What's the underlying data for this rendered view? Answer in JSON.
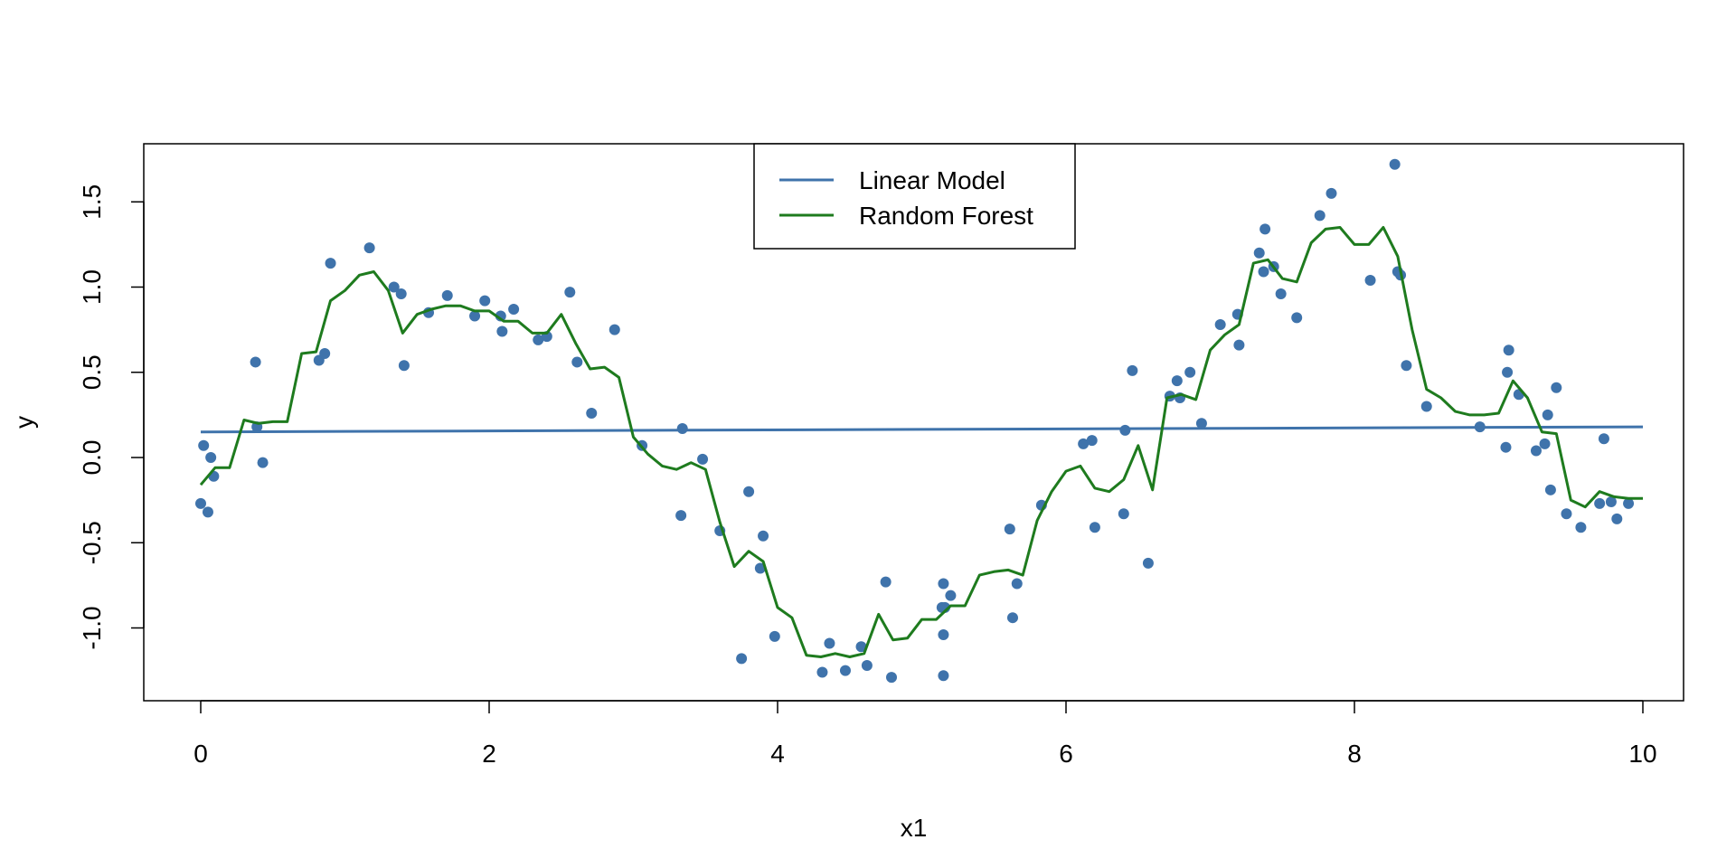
{
  "chart_data": {
    "type": "scatter",
    "title": "",
    "xlabel": "x1",
    "ylabel": "y",
    "xlim": [
      0,
      10
    ],
    "ylim": [
      -1.3,
      1.72
    ],
    "x_ticks": [
      0,
      2,
      4,
      6,
      8,
      10
    ],
    "x_tick_labels": [
      "0",
      "2",
      "4",
      "6",
      "8",
      "10"
    ],
    "y_ticks": [
      -1.0,
      -0.5,
      0.0,
      0.5,
      1.0,
      1.5
    ],
    "y_tick_labels": [
      "-1.0",
      "-0.5",
      "0.0",
      "0.5",
      "1.0",
      "1.5"
    ],
    "grid": false,
    "legend_position": "top-center",
    "points": {
      "color": "#3f73ab",
      "x": [
        0.0,
        0.02,
        0.05,
        0.07,
        0.09,
        0.38,
        0.39,
        0.43,
        0.82,
        0.86,
        0.9,
        1.17,
        1.34,
        1.39,
        1.41,
        1.58,
        1.71,
        1.9,
        1.97,
        2.08,
        2.09,
        2.17,
        2.34,
        2.4,
        2.56,
        2.61,
        2.71,
        2.87,
        3.06,
        3.33,
        3.34,
        3.48,
        3.6,
        3.75,
        3.8,
        3.88,
        3.9,
        3.98,
        4.31,
        4.36,
        4.47,
        4.58,
        4.62,
        4.75,
        4.79,
        5.14,
        5.15,
        5.15,
        5.15,
        5.16,
        5.2,
        5.61,
        5.63,
        5.66,
        5.83,
        6.12,
        6.18,
        6.2,
        6.4,
        6.41,
        6.46,
        6.57,
        6.72,
        6.77,
        6.79,
        6.86,
        6.94,
        7.07,
        7.19,
        7.2,
        7.34,
        7.37,
        7.38,
        7.44,
        7.49,
        7.6,
        7.76,
        7.84,
        8.11,
        8.28,
        8.3,
        8.32,
        8.36,
        8.5,
        8.87,
        9.05,
        9.06,
        9.07,
        9.14,
        9.26,
        9.32,
        9.34,
        9.36,
        9.4,
        9.47,
        9.57,
        9.7,
        9.73,
        9.78,
        9.82,
        9.9
      ],
      "y": [
        -0.27,
        0.07,
        -0.32,
        0.0,
        -0.11,
        0.56,
        0.18,
        -0.03,
        0.57,
        0.61,
        1.14,
        1.23,
        1.0,
        0.96,
        0.54,
        0.85,
        0.95,
        0.83,
        0.92,
        0.83,
        0.74,
        0.87,
        0.69,
        0.71,
        0.97,
        0.56,
        0.26,
        0.75,
        0.07,
        -0.34,
        0.17,
        -0.01,
        -0.43,
        -1.18,
        -0.2,
        -0.65,
        -0.46,
        -1.05,
        -1.26,
        -1.09,
        -1.25,
        -1.11,
        -1.22,
        -0.73,
        -1.29,
        -0.88,
        -1.04,
        -0.74,
        -1.28,
        -0.88,
        -0.81,
        -0.42,
        -0.94,
        -0.74,
        -0.28,
        0.08,
        0.1,
        -0.41,
        -0.33,
        0.16,
        0.51,
        -0.62,
        0.36,
        0.45,
        0.35,
        0.5,
        0.2,
        0.78,
        0.84,
        0.66,
        1.2,
        1.09,
        1.34,
        1.12,
        0.96,
        0.82,
        1.42,
        1.55,
        1.04,
        1.72,
        1.09,
        1.07,
        0.54,
        0.3,
        0.18,
        0.06,
        0.5,
        0.63,
        0.37,
        0.04,
        0.08,
        0.25,
        -0.19,
        0.41,
        -0.33,
        -0.41,
        -0.27,
        0.11,
        -0.26,
        -0.36,
        -0.27
      ]
    },
    "series": [
      {
        "name": "Linear Model",
        "color": "#3f73ab",
        "x": [
          0,
          10
        ],
        "y": [
          0.15,
          0.18
        ]
      },
      {
        "name": "Random Forest",
        "color": "#1e7b1e",
        "x": [
          0.0,
          0.1,
          0.2,
          0.3,
          0.4,
          0.5,
          0.6,
          0.7,
          0.8,
          0.9,
          1.0,
          1.1,
          1.2,
          1.3,
          1.4,
          1.5,
          1.6,
          1.7,
          1.8,
          1.9,
          2.0,
          2.1,
          2.2,
          2.3,
          2.4,
          2.5,
          2.6,
          2.7,
          2.8,
          2.9,
          3.0,
          3.1,
          3.2,
          3.3,
          3.4,
          3.5,
          3.6,
          3.7,
          3.8,
          3.9,
          4.0,
          4.1,
          4.2,
          4.3,
          4.4,
          4.5,
          4.6,
          4.7,
          4.8,
          4.9,
          5.0,
          5.1,
          5.2,
          5.3,
          5.4,
          5.5,
          5.6,
          5.7,
          5.8,
          5.9,
          6.0,
          6.1,
          6.2,
          6.3,
          6.4,
          6.5,
          6.6,
          6.7,
          6.8,
          6.9,
          7.0,
          7.1,
          7.2,
          7.3,
          7.4,
          7.5,
          7.6,
          7.7,
          7.8,
          7.9,
          8.0,
          8.1,
          8.2,
          8.3,
          8.4,
          8.5,
          8.6,
          8.7,
          8.8,
          8.9,
          9.0,
          9.1,
          9.2,
          9.3,
          9.4,
          9.5,
          9.6,
          9.7,
          9.8,
          9.9,
          10.0
        ],
        "y": [
          -0.16,
          -0.06,
          -0.06,
          0.22,
          0.2,
          0.21,
          0.21,
          0.61,
          0.62,
          0.92,
          0.98,
          1.07,
          1.09,
          0.98,
          0.73,
          0.84,
          0.87,
          0.89,
          0.89,
          0.86,
          0.86,
          0.8,
          0.8,
          0.73,
          0.73,
          0.84,
          0.67,
          0.52,
          0.53,
          0.47,
          0.12,
          0.02,
          -0.05,
          -0.07,
          -0.03,
          -0.07,
          -0.38,
          -0.64,
          -0.55,
          -0.61,
          -0.88,
          -0.94,
          -1.16,
          -1.17,
          -1.15,
          -1.17,
          -1.15,
          -0.92,
          -1.07,
          -1.06,
          -0.95,
          -0.95,
          -0.87,
          -0.87,
          -0.69,
          -0.67,
          -0.66,
          -0.69,
          -0.37,
          -0.2,
          -0.08,
          -0.05,
          -0.18,
          -0.2,
          -0.13,
          0.07,
          -0.19,
          0.35,
          0.37,
          0.34,
          0.63,
          0.72,
          0.78,
          1.14,
          1.16,
          1.05,
          1.03,
          1.26,
          1.34,
          1.35,
          1.25,
          1.25,
          1.35,
          1.18,
          0.75,
          0.4,
          0.35,
          0.27,
          0.25,
          0.25,
          0.26,
          0.45,
          0.35,
          0.15,
          0.14,
          -0.25,
          -0.29,
          -0.2,
          -0.23,
          -0.24,
          -0.24
        ]
      }
    ]
  }
}
